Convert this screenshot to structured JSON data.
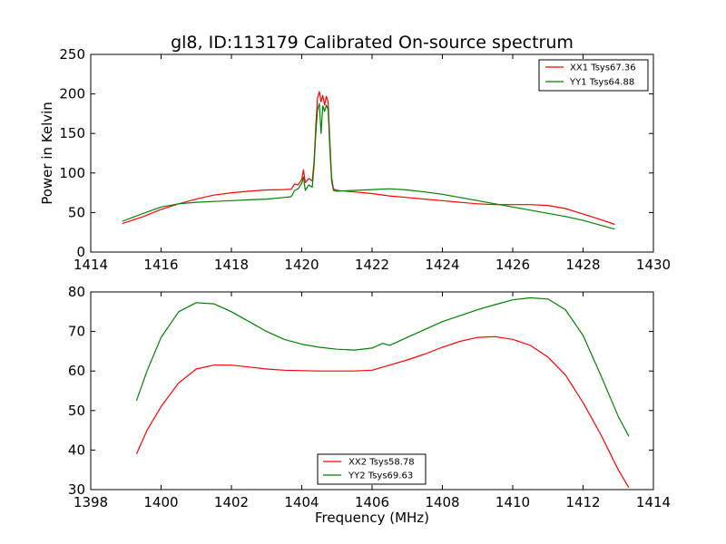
{
  "figure": {
    "title": "gl8, ID:113179 Calibrated On-source spectrum",
    "xlabel": "Frequency (MHz)"
  },
  "chart_data": [
    {
      "type": "line",
      "title": "gl8, ID:113179 Calibrated On-source spectrum",
      "xlabel": "",
      "ylabel": "Power in Kelvin",
      "xlim": [
        1414,
        1430
      ],
      "ylim": [
        0,
        250
      ],
      "xticks": [
        1414,
        1416,
        1418,
        1420,
        1422,
        1424,
        1426,
        1428,
        1430
      ],
      "yticks": [
        0,
        50,
        100,
        150,
        200,
        250
      ],
      "grid": false,
      "legend_position": "top-right",
      "series": [
        {
          "name": "XX1 Tsys67.36",
          "color": "#ff0000",
          "x": [
            1414.9,
            1415.5,
            1416.0,
            1416.5,
            1417.0,
            1417.5,
            1418.0,
            1418.5,
            1419.0,
            1419.5,
            1419.7,
            1419.8,
            1419.9,
            1420.0,
            1420.05,
            1420.1,
            1420.2,
            1420.3,
            1420.35,
            1420.4,
            1420.45,
            1420.5,
            1420.55,
            1420.6,
            1420.65,
            1420.7,
            1420.75,
            1420.8,
            1420.85,
            1420.9,
            1421.0,
            1421.5,
            1422.0,
            1422.5,
            1423.0,
            1423.5,
            1424.0,
            1424.5,
            1425.0,
            1425.5,
            1426.0,
            1426.5,
            1427.0,
            1427.5,
            1428.0,
            1428.5,
            1428.9
          ],
          "values": [
            36,
            45,
            54,
            61,
            67,
            72,
            75,
            77,
            78.5,
            79,
            79.5,
            86,
            85,
            92,
            104,
            88,
            93,
            90,
            115,
            160,
            195,
            203,
            190,
            198,
            186,
            197,
            190,
            140,
            95,
            80,
            78,
            76,
            74,
            71,
            69,
            67,
            65,
            63,
            61,
            60,
            60,
            60,
            59,
            55,
            48,
            41,
            35
          ]
        },
        {
          "name": "YY1 Tsys64.88",
          "color": "#008000",
          "x": [
            1414.9,
            1415.5,
            1416.0,
            1416.5,
            1417.0,
            1417.5,
            1418.0,
            1418.5,
            1419.0,
            1419.5,
            1419.7,
            1419.8,
            1419.9,
            1420.0,
            1420.05,
            1420.1,
            1420.2,
            1420.3,
            1420.35,
            1420.4,
            1420.45,
            1420.5,
            1420.55,
            1420.6,
            1420.65,
            1420.7,
            1420.75,
            1420.8,
            1420.85,
            1420.9,
            1421.0,
            1421.5,
            1422.0,
            1422.5,
            1423.0,
            1423.5,
            1424.0,
            1424.5,
            1425.0,
            1425.5,
            1426.0,
            1426.5,
            1427.0,
            1427.5,
            1428.0,
            1428.5,
            1428.9
          ],
          "values": [
            39,
            49,
            57,
            61,
            63,
            64,
            65,
            66,
            67,
            69,
            70,
            78,
            80,
            87,
            95,
            78,
            85,
            82,
            110,
            150,
            180,
            188,
            150,
            185,
            178,
            186,
            180,
            130,
            90,
            78,
            77,
            78,
            79,
            80,
            78.5,
            76,
            73,
            69,
            65,
            61,
            57,
            53,
            49,
            45,
            40,
            34,
            29
          ]
        }
      ]
    },
    {
      "type": "line",
      "title": "",
      "xlabel": "Frequency (MHz)",
      "ylabel": "",
      "xlim": [
        1398,
        1414
      ],
      "ylim": [
        30,
        80
      ],
      "xticks": [
        1398,
        1400,
        1402,
        1404,
        1406,
        1408,
        1410,
        1412,
        1414
      ],
      "yticks": [
        30,
        40,
        50,
        60,
        70,
        80
      ],
      "grid": false,
      "legend_position": "bottom-center",
      "series": [
        {
          "name": "XX2 Tsys58.78",
          "color": "#ff0000",
          "x": [
            1399.3,
            1399.6,
            1400.0,
            1400.5,
            1401.0,
            1401.5,
            1402.0,
            1402.5,
            1403.0,
            1403.5,
            1404.0,
            1404.5,
            1405.0,
            1405.5,
            1406.0,
            1406.5,
            1407.0,
            1407.5,
            1408.0,
            1408.5,
            1409.0,
            1409.5,
            1410.0,
            1410.5,
            1411.0,
            1411.5,
            1412.0,
            1412.5,
            1413.0,
            1413.3
          ],
          "values": [
            39,
            45,
            51,
            57,
            60.5,
            61.5,
            61.5,
            61,
            60.5,
            60.2,
            60.1,
            60,
            60,
            60,
            60.2,
            61.5,
            62.8,
            64.3,
            66,
            67.5,
            68.5,
            68.7,
            68,
            66.5,
            63.5,
            59,
            52,
            44,
            35,
            30.5
          ]
        },
        {
          "name": "YY2 Tsys69.63",
          "color": "#008000",
          "x": [
            1399.3,
            1399.6,
            1400.0,
            1400.5,
            1401.0,
            1401.5,
            1402.0,
            1402.5,
            1403.0,
            1403.5,
            1404.0,
            1404.5,
            1405.0,
            1405.5,
            1406.0,
            1406.3,
            1406.5,
            1407.0,
            1407.5,
            1408.0,
            1408.5,
            1409.0,
            1409.5,
            1410.0,
            1410.5,
            1411.0,
            1411.5,
            1412.0,
            1412.5,
            1413.0,
            1413.3
          ],
          "values": [
            52.5,
            60,
            68.5,
            75,
            77.3,
            77,
            75,
            72.5,
            70,
            68,
            66.8,
            66,
            65.5,
            65.3,
            65.8,
            67,
            66.5,
            68.5,
            70.5,
            72.5,
            74,
            75.5,
            76.8,
            78,
            78.5,
            78.2,
            75.5,
            69,
            59,
            48.5,
            43.5
          ]
        }
      ]
    }
  ]
}
